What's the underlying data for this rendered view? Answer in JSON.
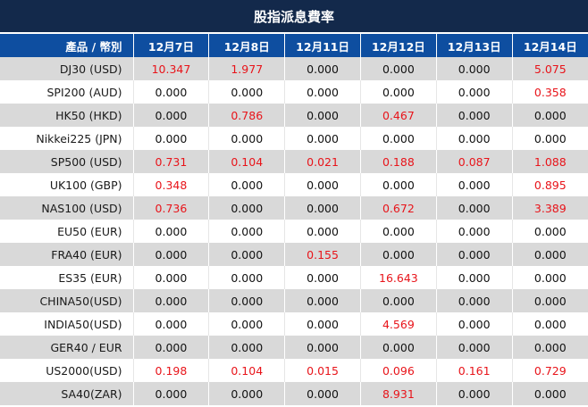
{
  "title": "股指派息費率",
  "header": {
    "product_label": "產品 / 幣別",
    "dates": [
      "12月7日",
      "12月8日",
      "12月11日",
      "12月12日",
      "12月13日",
      "12月14日"
    ]
  },
  "colors": {
    "title_bg": "#13294b",
    "header_bg": "#0e4ea0",
    "stripe": "#d9d9d9",
    "nonzero": "#e8141a"
  },
  "rows": [
    {
      "name": "DJ30 (USD)",
      "values": [
        "10.347",
        "1.977",
        "0.000",
        "0.000",
        "0.000",
        "5.075"
      ]
    },
    {
      "name": "SPI200 (AUD)",
      "values": [
        "0.000",
        "0.000",
        "0.000",
        "0.000",
        "0.000",
        "0.358"
      ]
    },
    {
      "name": "HK50 (HKD)",
      "values": [
        "0.000",
        "0.786",
        "0.000",
        "0.467",
        "0.000",
        "0.000"
      ]
    },
    {
      "name": "Nikkei225 (JPN)",
      "values": [
        "0.000",
        "0.000",
        "0.000",
        "0.000",
        "0.000",
        "0.000"
      ]
    },
    {
      "name": "SP500 (USD)",
      "values": [
        "0.731",
        "0.104",
        "0.021",
        "0.188",
        "0.087",
        "1.088"
      ]
    },
    {
      "name": "UK100 (GBP)",
      "values": [
        "0.348",
        "0.000",
        "0.000",
        "0.000",
        "0.000",
        "0.895"
      ]
    },
    {
      "name": "NAS100 (USD)",
      "values": [
        "0.736",
        "0.000",
        "0.000",
        "0.672",
        "0.000",
        "3.389"
      ]
    },
    {
      "name": "EU50 (EUR)",
      "values": [
        "0.000",
        "0.000",
        "0.000",
        "0.000",
        "0.000",
        "0.000"
      ]
    },
    {
      "name": "FRA40 (EUR)",
      "values": [
        "0.000",
        "0.000",
        "0.155",
        "0.000",
        "0.000",
        "0.000"
      ]
    },
    {
      "name": "ES35 (EUR)",
      "values": [
        "0.000",
        "0.000",
        "0.000",
        "16.643",
        "0.000",
        "0.000"
      ]
    },
    {
      "name": "CHINA50(USD)",
      "values": [
        "0.000",
        "0.000",
        "0.000",
        "0.000",
        "0.000",
        "0.000"
      ]
    },
    {
      "name": "INDIA50(USD)",
      "values": [
        "0.000",
        "0.000",
        "0.000",
        "4.569",
        "0.000",
        "0.000"
      ]
    },
    {
      "name": "GER40 / EUR",
      "values": [
        "0.000",
        "0.000",
        "0.000",
        "0.000",
        "0.000",
        "0.000"
      ]
    },
    {
      "name": "US2000(USD)",
      "values": [
        "0.198",
        "0.104",
        "0.015",
        "0.096",
        "0.161",
        "0.729"
      ]
    },
    {
      "name": "SA40(ZAR)",
      "values": [
        "0.000",
        "0.000",
        "0.000",
        "8.931",
        "0.000",
        "0.000"
      ]
    }
  ]
}
